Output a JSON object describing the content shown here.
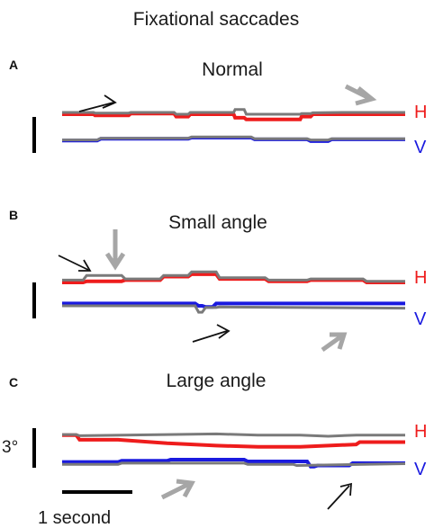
{
  "figure": {
    "title": "Fixational saccades",
    "scale_bar_vertical_label": "3°",
    "scale_bar_horizontal_label": "1 second"
  },
  "colors": {
    "horizontal_trace": "#ee1c1c",
    "vertical_trace": "#1a1adf",
    "fellow_eye_trace": "#7a7a7a",
    "black_arrow": "#111111",
    "gray_arrow": "#a6a6a6"
  },
  "chart_data": [
    {
      "type": "line",
      "panel_letter": "A",
      "title": "Normal",
      "channel_labels": [
        "H",
        "V"
      ],
      "x_unit": "s",
      "y_unit": "deg",
      "xlim": [
        0,
        4.9
      ],
      "series": [
        {
          "name": "H",
          "color": "#ee1c1c",
          "x": [
            0,
            0.45,
            0.47,
            0.95,
            0.98,
            1.6,
            1.63,
            1.8,
            1.83,
            2.45,
            2.47,
            2.6,
            2.63,
            3.4,
            3.42,
            3.55,
            3.58,
            3.6,
            4.0,
            4.03,
            4.9
          ],
          "y": [
            0,
            0,
            -0.1,
            -0.1,
            0.05,
            0.05,
            -0.2,
            -0.2,
            0.0,
            0.0,
            -0.3,
            -0.3,
            -0.45,
            -0.45,
            -0.2,
            -0.2,
            0,
            0,
            0,
            0,
            0
          ]
        },
        {
          "name": "",
          "color": "#7a7a7a",
          "x": [
            0,
            0.45,
            0.47,
            0.95,
            0.98,
            1.6,
            1.63,
            1.8,
            1.83,
            2.45,
            2.47,
            2.6,
            2.63,
            3.4,
            3.42,
            3.55,
            3.58,
            3.6,
            4.0,
            4.03,
            4.9
          ],
          "y": [
            0.15,
            0.15,
            0.1,
            0.1,
            0.15,
            0.15,
            0.0,
            0.0,
            0.15,
            0.15,
            0.4,
            0.4,
            0.0,
            0.0,
            0.05,
            0.05,
            0.12,
            0.12,
            0.15,
            0.15,
            0.15
          ]
        },
        {
          "name": "V",
          "color": "#1a1adf",
          "x": [
            0,
            0.5,
            0.55,
            1.8,
            1.85,
            2.7,
            2.75,
            3.5,
            3.55,
            3.6,
            3.8,
            3.85,
            4.9
          ],
          "y": [
            -2.25,
            -2.25,
            -2.1,
            -2.1,
            -2.0,
            -2.0,
            -2.15,
            -2.15,
            -2.3,
            -2.3,
            -2.3,
            -2.15,
            -2.15
          ]
        },
        {
          "name": "",
          "color": "#7a7a7a",
          "x": [
            0,
            0.5,
            0.55,
            1.8,
            1.85,
            2.7,
            2.75,
            3.5,
            3.55,
            3.8,
            3.85,
            4.9
          ],
          "y": [
            -2.2,
            -2.2,
            -2.05,
            -2.05,
            -1.95,
            -1.95,
            -2.1,
            -2.1,
            -2.2,
            -2.2,
            -2.1,
            -2.1
          ]
        }
      ]
    },
    {
      "type": "line",
      "panel_letter": "B",
      "title": "Small angle",
      "channel_labels": [
        "H",
        "V"
      ],
      "x_unit": "s",
      "y_unit": "deg",
      "xlim": [
        0,
        4.9
      ],
      "series": [
        {
          "name": "H",
          "color": "#ee1c1c",
          "x": [
            0,
            0.3,
            0.35,
            0.85,
            0.9,
            1.4,
            1.45,
            1.8,
            1.85,
            2.2,
            2.25,
            2.9,
            2.95,
            3.5,
            3.55,
            4.3,
            4.35,
            4.9
          ],
          "y": [
            0,
            0,
            0.1,
            0.1,
            0.2,
            0.2,
            0.5,
            0.5,
            0.7,
            0.7,
            0.3,
            0.3,
            0.1,
            0.1,
            0.2,
            0.2,
            0.0,
            0.0
          ]
        },
        {
          "name": "",
          "color": "#7a7a7a",
          "x": [
            0,
            0.3,
            0.35,
            0.85,
            0.9,
            1.4,
            1.45,
            1.8,
            1.85,
            2.2,
            2.25,
            2.9,
            2.95,
            3.5,
            3.55,
            4.3,
            4.35,
            4.9
          ],
          "y": [
            0.2,
            0.2,
            0.6,
            0.6,
            0.3,
            0.3,
            0.6,
            0.6,
            0.9,
            0.9,
            0.4,
            0.4,
            0.2,
            0.2,
            0.3,
            0.3,
            0.1,
            0.1
          ]
        },
        {
          "name": "V",
          "color": "#1a1adf",
          "x": [
            0,
            1.9,
            1.95,
            2.0,
            2.05,
            2.15,
            2.2,
            4.9
          ],
          "y": [
            -1.8,
            -1.8,
            -2.0,
            -2.0,
            -2.1,
            -2.1,
            -1.8,
            -1.8
          ]
        },
        {
          "name": "",
          "color": "#7a7a7a",
          "x": [
            0,
            1.9,
            1.95,
            2.0,
            2.05,
            2.2,
            2.25,
            4.9
          ],
          "y": [
            -2.0,
            -2.0,
            -2.55,
            -2.55,
            -2.15,
            -2.15,
            -2.1,
            -2.2
          ]
        }
      ]
    },
    {
      "type": "line",
      "panel_letter": "C",
      "title": "Large angle",
      "channel_labels": [
        "H",
        "V"
      ],
      "x_unit": "s",
      "y_unit": "deg",
      "xlim": [
        0,
        4.9
      ],
      "series": [
        {
          "name": "H",
          "color": "#ee1c1c",
          "x": [
            0,
            0.2,
            0.25,
            0.8,
            1.5,
            2.2,
            2.8,
            3.4,
            4.2,
            4.25,
            4.9
          ],
          "y": [
            0.1,
            0.1,
            -0.3,
            -0.3,
            -0.6,
            -0.8,
            -0.9,
            -0.9,
            -0.7,
            -0.5,
            -0.5
          ]
        },
        {
          "name": "",
          "color": "#7a7a7a",
          "x": [
            0,
            0.2,
            0.25,
            1.5,
            2.2,
            2.8,
            3.4,
            3.8,
            4.2,
            4.9
          ],
          "y": [
            0.15,
            0.15,
            0.05,
            0.15,
            0.2,
            0.1,
            0.1,
            0.0,
            0.1,
            0.1
          ]
        },
        {
          "name": "V",
          "color": "#1a1adf",
          "x": [
            0,
            0.8,
            0.85,
            1.5,
            1.55,
            2.6,
            2.65,
            3.5,
            3.55,
            3.6,
            3.65,
            4.1,
            4.15,
            4.9
          ],
          "y": [
            -2.2,
            -2.2,
            -2.1,
            -2.1,
            -2.0,
            -2.0,
            -2.15,
            -2.15,
            -2.6,
            -2.6,
            -2.5,
            -2.5,
            -2.3,
            -2.3
          ]
        },
        {
          "name": "",
          "color": "#7a7a7a",
          "x": [
            0,
            0.8,
            0.85,
            2.6,
            2.65,
            3.3,
            3.35,
            4.9
          ],
          "y": [
            -2.4,
            -2.4,
            -2.3,
            -2.3,
            -2.4,
            -2.4,
            -2.5,
            -2.35
          ]
        }
      ]
    }
  ]
}
